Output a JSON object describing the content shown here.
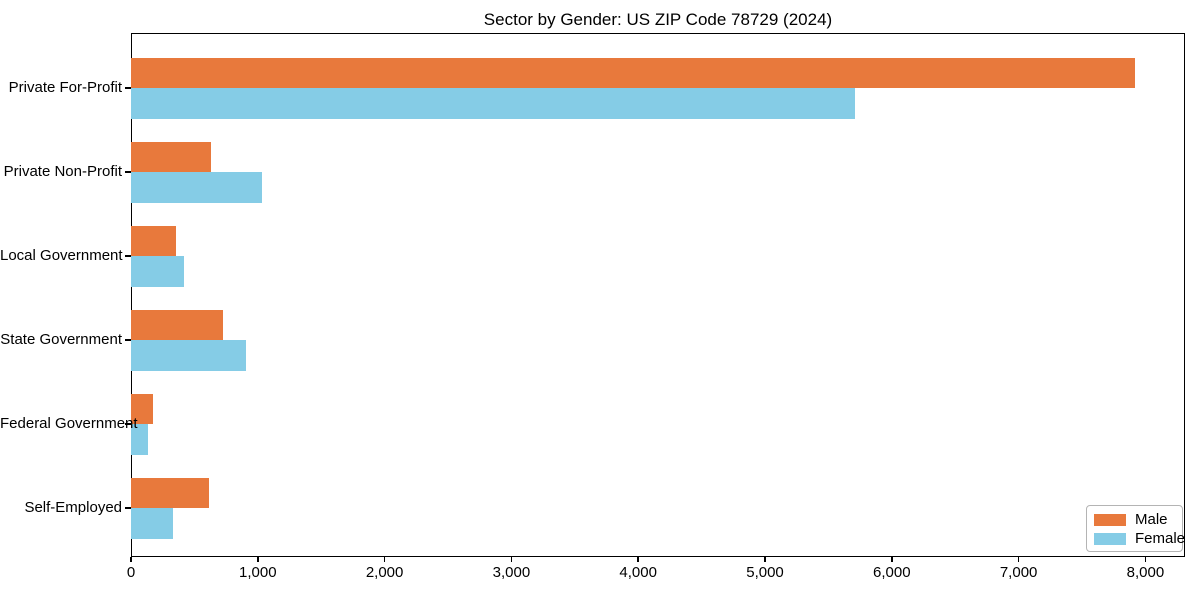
{
  "title": "Sector by Gender: US ZIP Code 78729 (2024)",
  "chart_data": {
    "type": "bar",
    "orientation": "horizontal",
    "title": "Sector by Gender: US ZIP Code 78729 (2024)",
    "categories": [
      "Private For-Profit",
      "Private Non-Profit",
      "Local Government",
      "State Government",
      "Federal Government",
      "Self-Employed"
    ],
    "series": [
      {
        "name": "Male",
        "color": "#e8793c",
        "values": [
          7916,
          630,
          355,
          725,
          173,
          615
        ]
      },
      {
        "name": "Female",
        "color": "#85cce6",
        "values": [
          5713,
          1032,
          418,
          906,
          134,
          331
        ]
      }
    ],
    "xlabel": "",
    "ylabel": "",
    "xlim": [
      0,
      8312
    ],
    "xticks": [
      0,
      1000,
      2000,
      3000,
      4000,
      5000,
      6000,
      7000,
      8000
    ],
    "xtick_labels": [
      "0",
      "1,000",
      "2,000",
      "3,000",
      "4,000",
      "5,000",
      "6,000",
      "7,000",
      "8,000"
    ],
    "grid": false,
    "background": "#ffffff",
    "axis_color": "#000000",
    "legend": {
      "position": "lower right",
      "entries": [
        "Male",
        "Female"
      ]
    }
  }
}
